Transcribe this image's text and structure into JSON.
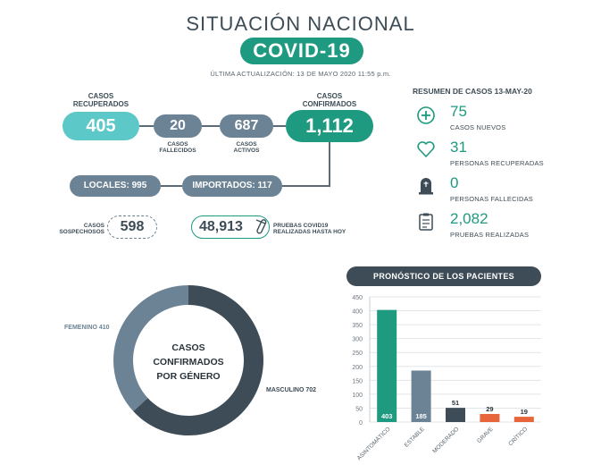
{
  "header": {
    "title": "SITUACIÓN NACIONAL",
    "subtitle": "COVID-19",
    "updated": "ÚLTIMA ACTUALIZACIÓN: 13 DE MAYO 2020 11:55 p.m."
  },
  "stats": {
    "recuperados_label": [
      "CASOS",
      "RECUPERADOS"
    ],
    "recuperados": "405",
    "fallecidos": "20",
    "fallecidos_label": [
      "CASOS",
      "FALLECIDOS"
    ],
    "activos": "687",
    "activos_label": [
      "CASOS",
      "ACTIVOS"
    ],
    "confirmados_label": [
      "CASOS",
      "CONFIRMADOS"
    ],
    "confirmados": "1,112",
    "locales": "LOCALES: 995",
    "importados": "IMPORTADOS: 117",
    "sospechosos_label": [
      "CASOS",
      "SOSPECHOSOS"
    ],
    "sospechosos": "598",
    "pruebas": "48,913",
    "pruebas_label": [
      "PRUEBAS COVID19",
      "REALIZADAS HASTA HOY"
    ]
  },
  "summary": {
    "title": "RESUMEN DE CASOS 13-MAY-20",
    "items": [
      {
        "value": "75",
        "label": "CASOS NUEVOS",
        "icon": "plus-circle-icon"
      },
      {
        "value": "31",
        "label": "PERSONAS RECUPERADAS",
        "icon": "heart-icon"
      },
      {
        "value": "0",
        "label": "PERSONAS FALLECIDAS",
        "icon": "tombstone-icon"
      },
      {
        "value": "2,082",
        "label": "PRUEBAS REALIZADAS",
        "icon": "clipboard-icon"
      }
    ]
  },
  "colors": {
    "teal": "#1e9a80",
    "light_teal": "#5cc8c8",
    "slate": "#6c8395",
    "dark": "#3d4c56",
    "orange": "#e8643a"
  },
  "chart_data": [
    {
      "type": "pie",
      "title": [
        "CASOS",
        "CONFIRMADOS",
        "POR GÉNERO"
      ],
      "categories": [
        "FEMENINO",
        "MASCULINO"
      ],
      "values": [
        410,
        702
      ],
      "labels": [
        "FEMENINO 410",
        "MASCULINO 702"
      ],
      "colors": [
        "#6c8395",
        "#3d4c56"
      ]
    },
    {
      "type": "bar",
      "title": "PRONÓSTICO DE LOS PACIENTES",
      "categories": [
        "ASINTOMÁTICO",
        "ESTABLE",
        "MODERADO",
        "GRAVE",
        "CRÍTICO"
      ],
      "values": [
        403,
        185,
        51,
        29,
        19
      ],
      "colors": [
        "#1e9a80",
        "#6c8395",
        "#3d4c56",
        "#e8643a",
        "#e8643a"
      ],
      "ylim": [
        0,
        450
      ],
      "yticks": [
        0,
        50,
        100,
        150,
        200,
        250,
        300,
        350,
        400,
        450
      ],
      "grid": true
    }
  ]
}
